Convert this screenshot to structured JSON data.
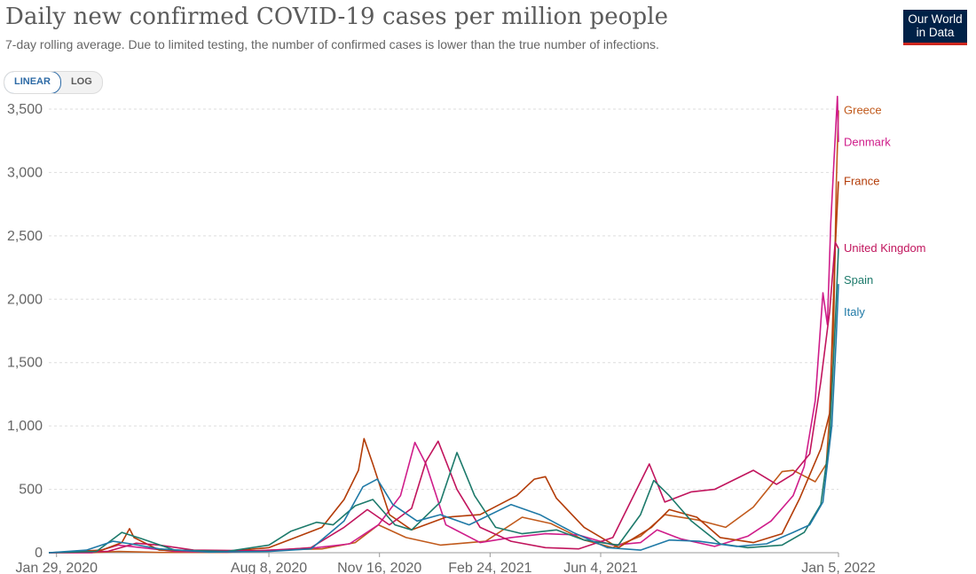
{
  "title": "Daily new confirmed COVID-19 cases per million people",
  "subtitle": "7-day rolling average. Due to limited testing, the number of confirmed cases is lower than the true number of infections.",
  "logo": {
    "line1": "Our World",
    "line2": "in Data"
  },
  "scale_toggle": {
    "linear_label": "LINEAR",
    "log_label": "LOG",
    "selected": "linear"
  },
  "chart_data": {
    "type": "line",
    "title": "Daily new confirmed COVID-19 cases per million people",
    "subtitle": "7-day rolling average. Due to limited testing, the number of confirmed cases is lower than the true number of infections.",
    "x_type": "date",
    "xlim": [
      "2020-01-22",
      "2022-01-05"
    ],
    "ylim": [
      0,
      3500
    ],
    "yticks": [
      0,
      500,
      1000,
      1500,
      2000,
      2500,
      3000,
      3500
    ],
    "ytick_labels": [
      "0",
      "500",
      "1,000",
      "1,500",
      "2,000",
      "2,500",
      "3,000",
      "3,500"
    ],
    "xticks": [
      "2020-01-29",
      "2020-08-08",
      "2020-11-16",
      "2021-02-24",
      "2021-06-04",
      "2022-01-05"
    ],
    "xtick_labels": [
      "Jan 29, 2020",
      "Aug 8, 2020",
      "Nov 16, 2020",
      "Feb 24, 2021",
      "Jun 4, 2021",
      "Jan 5, 2022"
    ],
    "grid": "horizontal dashed",
    "legend": "inline-right",
    "series": [
      {
        "name": "Greece",
        "color": "#c15a1c",
        "points": [
          [
            "2020-01-22",
            0
          ],
          [
            "2020-03-01",
            0
          ],
          [
            "2020-03-25",
            10
          ],
          [
            "2020-05-01",
            2
          ],
          [
            "2020-07-01",
            3
          ],
          [
            "2020-08-08",
            20
          ],
          [
            "2020-09-25",
            30
          ],
          [
            "2020-10-25",
            80
          ],
          [
            "2020-11-15",
            220
          ],
          [
            "2020-12-10",
            120
          ],
          [
            "2021-01-10",
            60
          ],
          [
            "2021-02-20",
            90
          ],
          [
            "2021-03-25",
            280
          ],
          [
            "2021-04-20",
            230
          ],
          [
            "2021-05-20",
            100
          ],
          [
            "2021-06-15",
            40
          ],
          [
            "2021-07-10",
            130
          ],
          [
            "2021-08-01",
            300
          ],
          [
            "2021-08-30",
            260
          ],
          [
            "2021-09-25",
            200
          ],
          [
            "2021-10-20",
            360
          ],
          [
            "2021-11-15",
            640
          ],
          [
            "2021-11-25",
            650
          ],
          [
            "2021-12-15",
            560
          ],
          [
            "2021-12-25",
            700
          ],
          [
            "2021-12-31",
            1500
          ],
          [
            "2022-01-03",
            2900
          ],
          [
            "2022-01-05",
            3490
          ]
        ]
      },
      {
        "name": "Denmark",
        "color": "#cf1d8a",
        "points": [
          [
            "2020-01-22",
            0
          ],
          [
            "2020-03-01",
            0
          ],
          [
            "2020-03-25",
            60
          ],
          [
            "2020-04-15",
            40
          ],
          [
            "2020-05-15",
            10
          ],
          [
            "2020-07-01",
            5
          ],
          [
            "2020-08-10",
            20
          ],
          [
            "2020-09-20",
            40
          ],
          [
            "2020-10-20",
            70
          ],
          [
            "2020-11-15",
            220
          ],
          [
            "2020-12-05",
            450
          ],
          [
            "2020-12-18",
            870
          ],
          [
            "2020-12-28",
            700
          ],
          [
            "2021-01-15",
            220
          ],
          [
            "2021-02-15",
            80
          ],
          [
            "2021-03-15",
            120
          ],
          [
            "2021-04-15",
            150
          ],
          [
            "2021-05-15",
            140
          ],
          [
            "2021-06-15",
            60
          ],
          [
            "2021-07-10",
            80
          ],
          [
            "2021-07-25",
            180
          ],
          [
            "2021-08-15",
            110
          ],
          [
            "2021-09-15",
            50
          ],
          [
            "2021-10-15",
            130
          ],
          [
            "2021-11-05",
            250
          ],
          [
            "2021-11-25",
            450
          ],
          [
            "2021-12-05",
            680
          ],
          [
            "2021-12-15",
            1200
          ],
          [
            "2021-12-22",
            2050
          ],
          [
            "2021-12-26",
            1800
          ],
          [
            "2021-12-29",
            2600
          ],
          [
            "2022-01-01",
            3100
          ],
          [
            "2022-01-04",
            3600
          ],
          [
            "2022-01-05",
            3240
          ]
        ]
      },
      {
        "name": "France",
        "color": "#b33c08",
        "points": [
          [
            "2020-01-22",
            0
          ],
          [
            "2020-03-10",
            20
          ],
          [
            "2020-03-28",
            80
          ],
          [
            "2020-04-04",
            190
          ],
          [
            "2020-04-08",
            120
          ],
          [
            "2020-05-01",
            20
          ],
          [
            "2020-07-01",
            10
          ],
          [
            "2020-08-08",
            40
          ],
          [
            "2020-09-01",
            120
          ],
          [
            "2020-09-25",
            200
          ],
          [
            "2020-10-15",
            420
          ],
          [
            "2020-10-28",
            650
          ],
          [
            "2020-11-02",
            900
          ],
          [
            "2020-11-10",
            700
          ],
          [
            "2020-11-25",
            300
          ],
          [
            "2020-12-15",
            180
          ],
          [
            "2021-01-15",
            280
          ],
          [
            "2021-02-15",
            300
          ],
          [
            "2021-03-20",
            450
          ],
          [
            "2021-04-05",
            580
          ],
          [
            "2021-04-15",
            600
          ],
          [
            "2021-04-25",
            430
          ],
          [
            "2021-05-20",
            200
          ],
          [
            "2021-06-20",
            40
          ],
          [
            "2021-07-20",
            200
          ],
          [
            "2021-08-05",
            340
          ],
          [
            "2021-08-30",
            280
          ],
          [
            "2021-09-20",
            120
          ],
          [
            "2021-10-20",
            80
          ],
          [
            "2021-11-15",
            150
          ],
          [
            "2021-12-01",
            430
          ],
          [
            "2021-12-20",
            820
          ],
          [
            "2021-12-28",
            1100
          ],
          [
            "2022-01-02",
            2400
          ],
          [
            "2022-01-05",
            2930
          ]
        ]
      },
      {
        "name": "United Kingdom",
        "color": "#c1155d",
        "points": [
          [
            "2020-01-22",
            0
          ],
          [
            "2020-03-15",
            10
          ],
          [
            "2020-04-10",
            75
          ],
          [
            "2020-05-01",
            60
          ],
          [
            "2020-06-01",
            20
          ],
          [
            "2020-08-08",
            15
          ],
          [
            "2020-09-15",
            40
          ],
          [
            "2020-10-15",
            200
          ],
          [
            "2020-11-05",
            340
          ],
          [
            "2020-11-25",
            220
          ],
          [
            "2020-12-15",
            350
          ],
          [
            "2020-12-28",
            720
          ],
          [
            "2021-01-08",
            880
          ],
          [
            "2021-01-25",
            500
          ],
          [
            "2021-02-15",
            200
          ],
          [
            "2021-03-15",
            90
          ],
          [
            "2021-04-15",
            40
          ],
          [
            "2021-05-15",
            30
          ],
          [
            "2021-06-15",
            120
          ],
          [
            "2021-07-18",
            700
          ],
          [
            "2021-08-01",
            400
          ],
          [
            "2021-08-25",
            480
          ],
          [
            "2021-09-15",
            500
          ],
          [
            "2021-10-20",
            650
          ],
          [
            "2021-11-10",
            540
          ],
          [
            "2021-11-25",
            620
          ],
          [
            "2021-12-10",
            780
          ],
          [
            "2021-12-20",
            1350
          ],
          [
            "2021-12-28",
            1900
          ],
          [
            "2022-01-02",
            2450
          ],
          [
            "2022-01-05",
            2400
          ]
        ]
      },
      {
        "name": "Spain",
        "color": "#1d7a6b",
        "points": [
          [
            "2020-01-22",
            0
          ],
          [
            "2020-03-05",
            10
          ],
          [
            "2020-03-28",
            160
          ],
          [
            "2020-04-15",
            110
          ],
          [
            "2020-05-15",
            20
          ],
          [
            "2020-07-01",
            10
          ],
          [
            "2020-08-08",
            60
          ],
          [
            "2020-08-28",
            170
          ],
          [
            "2020-09-20",
            240
          ],
          [
            "2020-10-05",
            220
          ],
          [
            "2020-10-25",
            370
          ],
          [
            "2020-11-10",
            420
          ],
          [
            "2020-11-30",
            220
          ],
          [
            "2020-12-15",
            180
          ],
          [
            "2021-01-10",
            400
          ],
          [
            "2021-01-25",
            790
          ],
          [
            "2021-02-10",
            450
          ],
          [
            "2021-03-01",
            200
          ],
          [
            "2021-03-25",
            150
          ],
          [
            "2021-04-25",
            180
          ],
          [
            "2021-05-20",
            100
          ],
          [
            "2021-06-20",
            60
          ],
          [
            "2021-07-10",
            300
          ],
          [
            "2021-07-22",
            570
          ],
          [
            "2021-08-05",
            450
          ],
          [
            "2021-08-25",
            250
          ],
          [
            "2021-09-20",
            70
          ],
          [
            "2021-10-15",
            40
          ],
          [
            "2021-11-15",
            60
          ],
          [
            "2021-12-05",
            160
          ],
          [
            "2021-12-20",
            380
          ],
          [
            "2021-12-28",
            900
          ],
          [
            "2022-01-02",
            1800
          ],
          [
            "2022-01-05",
            2400
          ]
        ]
      },
      {
        "name": "Italy",
        "color": "#1f79a6",
        "points": [
          [
            "2020-01-22",
            0
          ],
          [
            "2020-02-25",
            20
          ],
          [
            "2020-03-20",
            90
          ],
          [
            "2020-04-05",
            70
          ],
          [
            "2020-05-01",
            30
          ],
          [
            "2020-06-15",
            5
          ],
          [
            "2020-08-08",
            10
          ],
          [
            "2020-09-15",
            30
          ],
          [
            "2020-10-15",
            250
          ],
          [
            "2020-11-01",
            520
          ],
          [
            "2020-11-14",
            580
          ],
          [
            "2020-11-28",
            380
          ],
          [
            "2020-12-20",
            250
          ],
          [
            "2021-01-10",
            300
          ],
          [
            "2021-02-05",
            220
          ],
          [
            "2021-03-15",
            380
          ],
          [
            "2021-04-10",
            300
          ],
          [
            "2021-05-10",
            160
          ],
          [
            "2021-06-10",
            40
          ],
          [
            "2021-07-10",
            20
          ],
          [
            "2021-08-05",
            100
          ],
          [
            "2021-09-01",
            90
          ],
          [
            "2021-10-05",
            50
          ],
          [
            "2021-11-01",
            70
          ],
          [
            "2021-11-25",
            160
          ],
          [
            "2021-12-10",
            220
          ],
          [
            "2021-12-22",
            400
          ],
          [
            "2021-12-30",
            1000
          ],
          [
            "2022-01-03",
            1700
          ],
          [
            "2022-01-05",
            2120
          ]
        ]
      }
    ]
  }
}
